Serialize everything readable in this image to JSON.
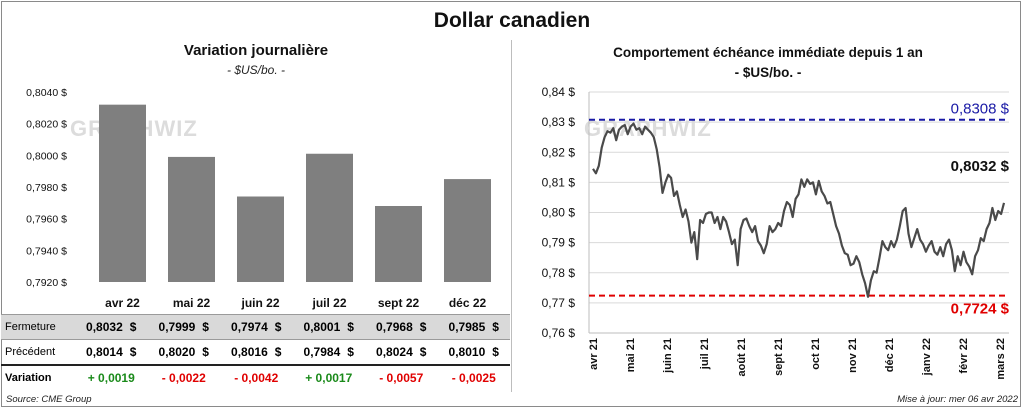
{
  "header": {
    "title": "Dollar canadien"
  },
  "left_panel": {
    "title": "Variation  journalière",
    "subtitle": "- $US/bo. -",
    "watermark": "GRAPHWIZ"
  },
  "right_panel": {
    "title": "Comportement échéance immédiate depuis 1 an",
    "subtitle": "- $US/bo. -",
    "watermark": "GRAPHWIZ",
    "high_label": "0,8308 $",
    "low_label": "0,7724 $",
    "last_label": "0,8032 $"
  },
  "table": {
    "row_labels": {
      "close": "Fermeture",
      "prev": "Précédent",
      "change": "Variation"
    },
    "currency": "$",
    "close": [
      "0,8032",
      "0,7999",
      "0,7974",
      "0,8001",
      "0,7968",
      "0,7985"
    ],
    "prev": [
      "0,8014",
      "0,8020",
      "0,8016",
      "0,7984",
      "0,8024",
      "0,8010"
    ],
    "change": [
      "+ 0,0019",
      "- 0,0022",
      "- 0,0042",
      "+ 0,0017",
      "- 0,0057",
      "- 0,0025"
    ]
  },
  "footer": {
    "source": "Source: CME Group",
    "updated": "Mise à jour: mer 06 avr 2022"
  },
  "colors": {
    "bar": "#7f7f7f",
    "line": "#4a4a4a",
    "high": "#1a1aa6",
    "low": "#e00000",
    "positive": "#1a8a1a",
    "negative": "#e00000"
  },
  "chart_data": [
    {
      "type": "bar",
      "title": "Variation  journalière",
      "subtitle": "- $US/bo. -",
      "categories": [
        "avr 22",
        "mai 22",
        "juin 22",
        "juil 22",
        "sept 22",
        "déc 22"
      ],
      "values": [
        0.8032,
        0.7999,
        0.7974,
        0.8001,
        0.7968,
        0.7985
      ],
      "ylim": [
        0.792,
        0.804
      ],
      "yticks": [
        "0,7920 $",
        "0,7940 $",
        "0,7960 $",
        "0,7980 $",
        "0,8000 $",
        "0,8020 $",
        "0,8040 $"
      ],
      "ytick_values": [
        0.792,
        0.794,
        0.796,
        0.798,
        0.8,
        0.802,
        0.804
      ],
      "grid": false
    },
    {
      "type": "line",
      "title": "Comportement échéance immédiate depuis 1 an",
      "subtitle": "- $US/bo. -",
      "x_start": "2021-04-06",
      "x_end": "2022-04-06",
      "xticks": [
        "avr 21",
        "mai 21",
        "juin 21",
        "juil 21",
        "août 21",
        "sept 21",
        "oct 21",
        "nov 21",
        "déc 21",
        "janv 22",
        "févr 22",
        "mars 22"
      ],
      "ylim": [
        0.76,
        0.84
      ],
      "yticks": [
        "0,76 $",
        "0,77 $",
        "0,78 $",
        "0,79 $",
        "0,80 $",
        "0,81 $",
        "0,82 $",
        "0,83 $",
        "0,84 $"
      ],
      "ytick_values": [
        0.76,
        0.77,
        0.78,
        0.79,
        0.8,
        0.81,
        0.82,
        0.83,
        0.84
      ],
      "grid": true,
      "reference_lines": [
        {
          "label": "0,8308 $",
          "value": 0.8308,
          "color": "#1a1aa6",
          "style": "dashed"
        },
        {
          "label": "0,7724 $",
          "value": 0.7724,
          "color": "#e00000",
          "style": "dashed"
        }
      ],
      "last_value_label": "0,8032 $",
      "values": [
        0.8145,
        0.813,
        0.8155,
        0.8215,
        0.825,
        0.827,
        0.8265,
        0.828,
        0.824,
        0.8275,
        0.8285,
        0.829,
        0.826,
        0.8285,
        0.8295,
        0.8275,
        0.828,
        0.826,
        0.8285,
        0.8275,
        0.8265,
        0.825,
        0.821,
        0.815,
        0.8065,
        0.81,
        0.8125,
        0.8115,
        0.8055,
        0.807,
        0.8025,
        0.7985,
        0.801,
        0.797,
        0.79,
        0.7935,
        0.7845,
        0.7975,
        0.7965,
        0.7995,
        0.8,
        0.8,
        0.7965,
        0.7985,
        0.7945,
        0.7985,
        0.797,
        0.7935,
        0.7895,
        0.791,
        0.7825,
        0.7945,
        0.7975,
        0.798,
        0.7955,
        0.7935,
        0.7955,
        0.7905,
        0.789,
        0.7865,
        0.7895,
        0.7955,
        0.7935,
        0.7945,
        0.7965,
        0.7955,
        0.8005,
        0.8035,
        0.8025,
        0.7985,
        0.8045,
        0.806,
        0.811,
        0.8085,
        0.811,
        0.8095,
        0.81,
        0.806,
        0.8105,
        0.807,
        0.8055,
        0.803,
        0.8035,
        0.7995,
        0.7955,
        0.793,
        0.789,
        0.7865,
        0.786,
        0.7825,
        0.783,
        0.7855,
        0.7835,
        0.7795,
        0.7765,
        0.772,
        0.7775,
        0.7805,
        0.78,
        0.785,
        0.7905,
        0.7885,
        0.7875,
        0.7905,
        0.7885,
        0.791,
        0.7955,
        0.8005,
        0.8015,
        0.793,
        0.7885,
        0.7915,
        0.7945,
        0.791,
        0.7895,
        0.787,
        0.789,
        0.7905,
        0.787,
        0.786,
        0.7885,
        0.7855,
        0.7895,
        0.791,
        0.7875,
        0.7805,
        0.7855,
        0.7825,
        0.787,
        0.7835,
        0.782,
        0.7795,
        0.7855,
        0.7875,
        0.7915,
        0.7905,
        0.7945,
        0.7965,
        0.8015,
        0.7975,
        0.8005,
        0.7995,
        0.8032
      ]
    }
  ]
}
